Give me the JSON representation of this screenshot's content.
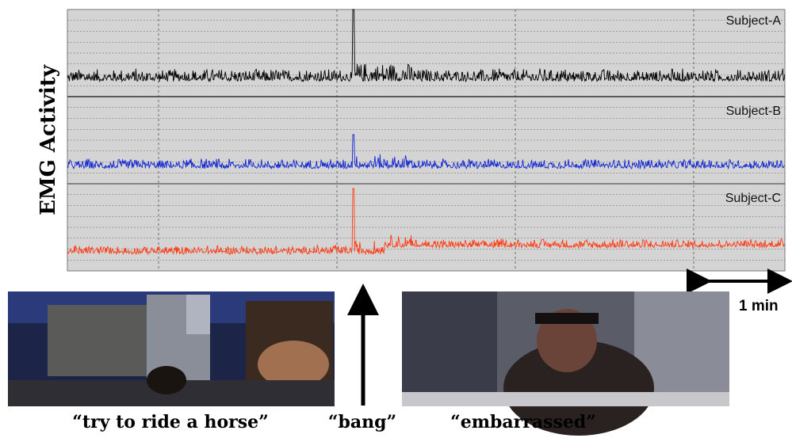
{
  "y_axis_label": "EMG Activity",
  "subjects": [
    {
      "name": "Subject-A",
      "color": "#000000"
    },
    {
      "name": "Subject-B",
      "color": "#1428d2"
    },
    {
      "name": "Subject-C",
      "color": "#ff3c14"
    }
  ],
  "scale_label": "1 min",
  "captions": [
    "“try to ride a horse”",
    "“bang”",
    "“embarrassed”"
  ]
}
